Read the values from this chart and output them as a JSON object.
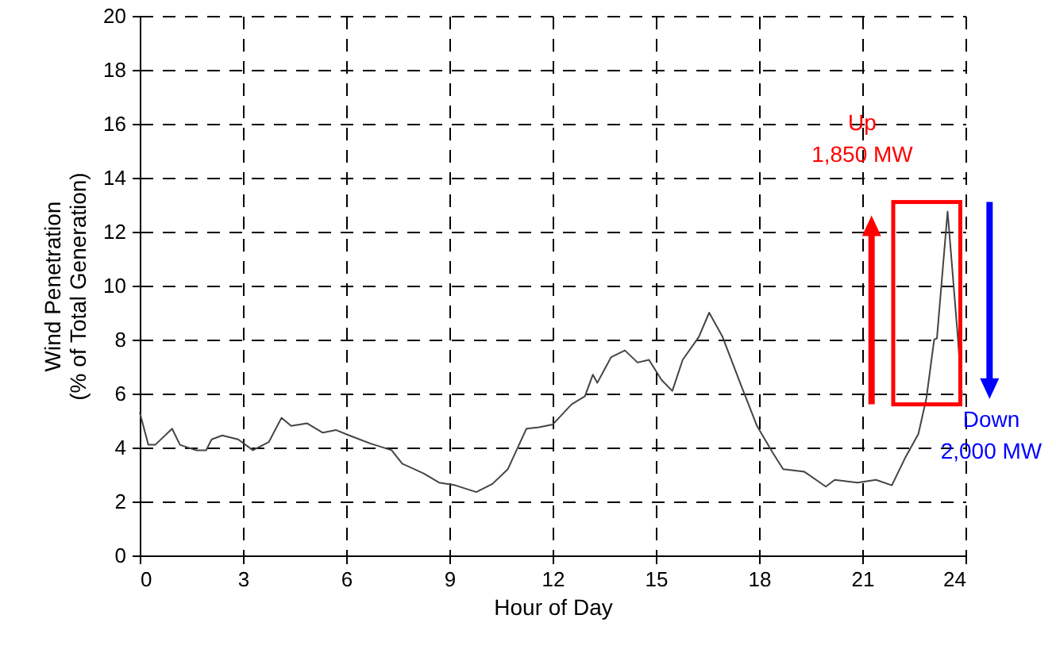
{
  "chart_data": {
    "type": "line",
    "xlabel": "Hour of Day",
    "ylabel": "Wind Penetration\n(% of Total Generation)",
    "x": [
      0,
      0.25,
      0.45,
      0.94,
      1.17,
      1.63,
      1.93,
      2.09,
      2.4,
      2.86,
      3.29,
      3.75,
      4.12,
      4.4,
      4.86,
      5.32,
      5.7,
      6.09,
      6.7,
      7.32,
      7.63,
      8.25,
      8.7,
      9.17,
      9.78,
      10.25,
      10.7,
      11.24,
      11.6,
      12.0,
      12.55,
      12.94,
      13.17,
      13.3,
      13.7,
      14.1,
      14.47,
      14.8,
      15.17,
      15.48,
      15.78,
      16.25,
      16.55,
      16.94,
      17.48,
      17.94,
      18.4,
      18.7,
      19.32,
      19.94,
      20.2,
      20.86,
      21.4,
      21.86,
      22.24,
      22.63,
      22.86,
      23.09,
      23.17,
      23.48,
      23.78,
      23.9
    ],
    "series": [
      {
        "color": "#444444",
        "values": [
          5.3,
          4.1,
          4.1,
          4.7,
          4.1,
          3.9,
          3.9,
          4.3,
          4.45,
          4.3,
          3.9,
          4.2,
          5.1,
          4.8,
          4.9,
          4.55,
          4.65,
          4.45,
          4.15,
          3.9,
          3.4,
          3.04,
          2.7,
          2.6,
          2.35,
          2.65,
          3.2,
          4.7,
          4.75,
          4.85,
          5.6,
          5.9,
          6.7,
          6.4,
          7.35,
          7.6,
          7.15,
          7.25,
          6.5,
          6.1,
          7.25,
          8.1,
          9.0,
          8.1,
          6.3,
          4.8,
          3.8,
          3.2,
          3.1,
          2.55,
          2.8,
          2.7,
          2.8,
          2.6,
          3.6,
          4.5,
          5.8,
          8.0,
          8.05,
          12.75,
          8.05,
          5.9
        ]
      }
    ],
    "xlim": [
      0,
      24
    ],
    "xticks": [
      0,
      3,
      6,
      9,
      12,
      15,
      18,
      21,
      24
    ],
    "ylim": [
      0,
      20
    ],
    "yticks": [
      0,
      2,
      4,
      6,
      8,
      10,
      12,
      14,
      16,
      18,
      20
    ],
    "grid": true,
    "marker": "none",
    "line_style": "solid",
    "annotations": [
      "Up\n1,850 MW",
      "Down\n2,000 MW"
    ]
  }
}
